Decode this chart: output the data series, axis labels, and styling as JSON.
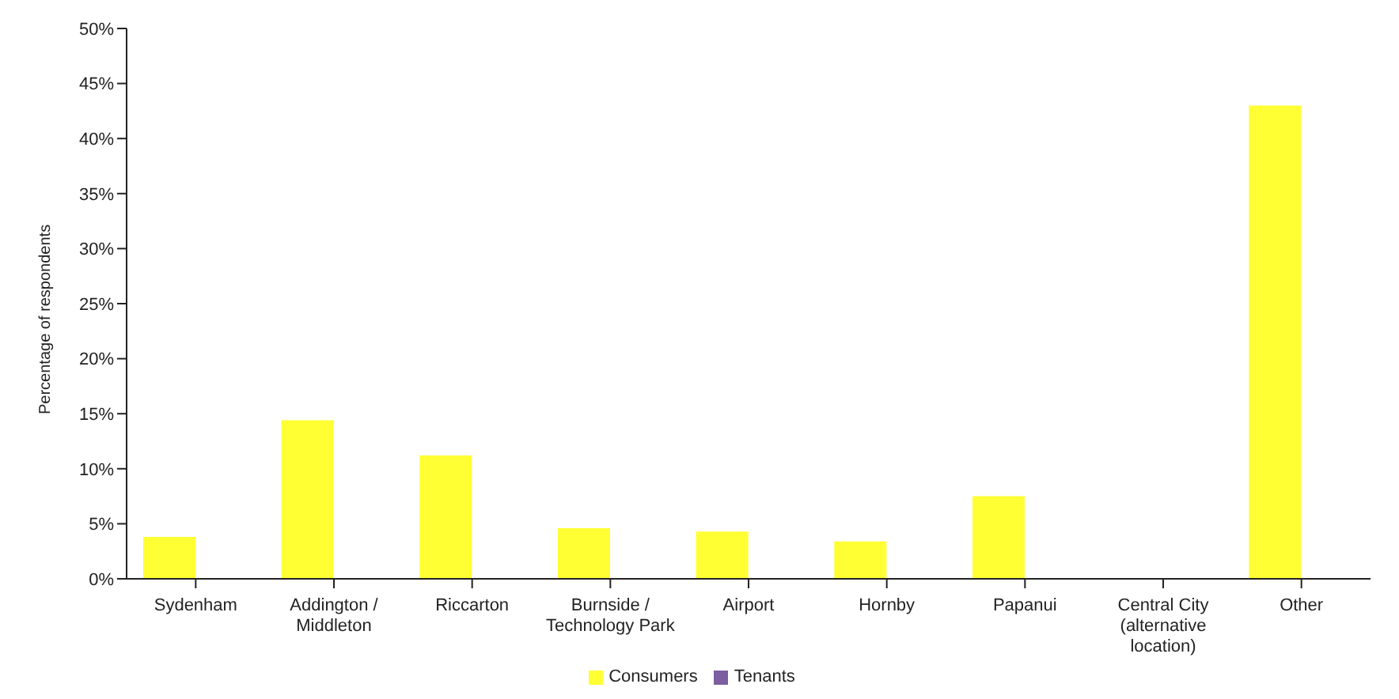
{
  "chart_data": {
    "type": "bar",
    "ylabel": "Percentage of respondents",
    "categories": [
      "Sydenham",
      "Addington / Middleton",
      "Riccarton",
      "Burnside / Technology Park",
      "Airport",
      "Hornby",
      "Papanui",
      "Central City (alternative location)",
      "Other"
    ],
    "series": [
      {
        "name": "Consumers",
        "color": "#ffff33",
        "values": [
          3.8,
          14.4,
          11.2,
          4.6,
          4.3,
          3.4,
          7.5,
          0,
          43
        ]
      },
      {
        "name": "Tenants",
        "color": "#7b5fa0",
        "values": [
          null,
          null,
          null,
          null,
          null,
          null,
          null,
          null,
          null
        ]
      }
    ],
    "ylim": [
      0,
      50
    ],
    "yticks": [
      {
        "value": 0,
        "label": "0%"
      },
      {
        "value": 5,
        "label": "5%"
      },
      {
        "value": 10,
        "label": "10%"
      },
      {
        "value": 15,
        "label": "15%"
      },
      {
        "value": 20,
        "label": "20%"
      },
      {
        "value": 25,
        "label": "25%"
      },
      {
        "value": 30,
        "label": "30%"
      },
      {
        "value": 35,
        "label": "35%"
      },
      {
        "value": 40,
        "label": "40%"
      },
      {
        "value": 45,
        "label": "45%"
      },
      {
        "value": 50,
        "label": "50%"
      }
    ],
    "grid": false,
    "legend": "bottom"
  }
}
